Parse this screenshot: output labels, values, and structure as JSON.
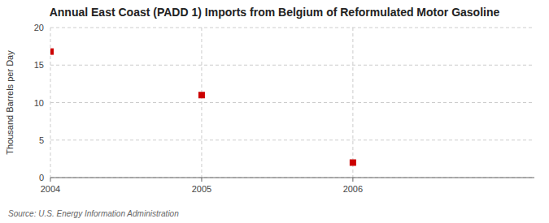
{
  "chart_data": {
    "type": "scatter",
    "title": "Annual East Coast (PADD 1) Imports from Belgium of Reformulated Motor Gasoline",
    "y_label": "Thousand Barrels per Day",
    "annotations": [
      "Source: U.S. Energy Information Administration"
    ],
    "x": [
      2004,
      2005,
      2006
    ],
    "values": [
      16.8,
      11.0,
      2.0
    ],
    "xlim": [
      2004,
      2007.2
    ],
    "ylim": [
      0,
      20
    ],
    "xticks": [
      2004,
      2005,
      2006
    ],
    "yticks": [
      0,
      5,
      10,
      15,
      20
    ],
    "color": "#cc0000",
    "marker": "square",
    "grid": true
  }
}
